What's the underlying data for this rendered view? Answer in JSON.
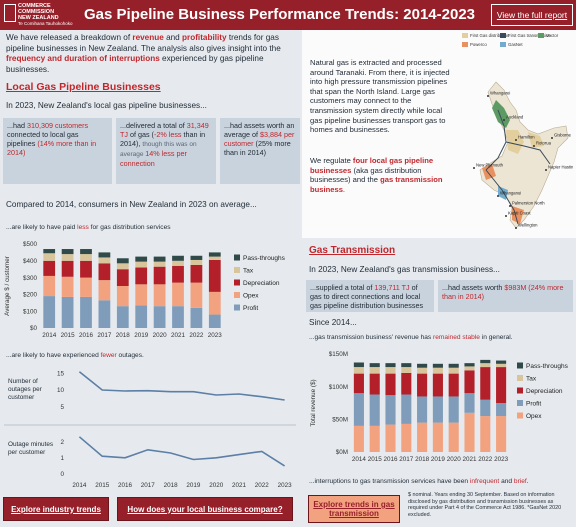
{
  "header": {
    "logo": [
      "COMMERCE",
      "COMMISSION",
      "NEW ZEALAND",
      "Te Comihana Tauhokohoko"
    ],
    "title": "Gas Pipeline Business Performance Trends: 2014-2023",
    "link": "View the full report"
  },
  "intro": [
    {
      "text": "We have released a breakdown of ",
      "style": "plain"
    },
    {
      "text": "revenue",
      "style": "bold-red"
    },
    {
      "text": " and ",
      "style": "plain"
    },
    {
      "text": "profitability",
      "style": "bold-red"
    },
    {
      "text": " trends for gas pipeline businesses in New Zealand. The analysis also gives insight into the ",
      "style": "plain"
    },
    {
      "text": "frequency and duration of interruptions",
      "style": "bold-red"
    },
    {
      "text": " experienced by gas pipeline businesses.",
      "style": "plain"
    }
  ],
  "local": {
    "heading": "Local Gas Pipeline Businesses",
    "lead": "In 2023, New Zealand's local gas pipeline businesses...",
    "boxes": [
      [
        {
          "text": "...had ",
          "style": "plain"
        },
        {
          "text": "310,309 customers",
          "style": "red"
        },
        {
          "text": " connected to local gas pipelines ",
          "style": "plain"
        },
        {
          "text": "(14% more than in 2014)",
          "style": "red"
        }
      ],
      [
        {
          "text": "...delivered a total of ",
          "style": "plain"
        },
        {
          "text": "31,349 TJ",
          "style": "red"
        },
        {
          "text": " of gas (",
          "style": "plain"
        },
        {
          "text": "-2% less",
          "style": "red"
        },
        {
          "text": " than in 2014), ",
          "style": "plain"
        },
        {
          "text": "though this was on average ",
          "style": "light"
        },
        {
          "text": "14% less per connection",
          "style": "red"
        }
      ],
      [
        {
          "text": "...had assets worth an average of ",
          "style": "plain"
        },
        {
          "text": "$3,884 per customer",
          "style": "red"
        },
        {
          "text": " (25% more than in 2014)",
          "style": "plain"
        }
      ]
    ],
    "compared": "Compared to 2014, consumers in New Zealand in 2023 on average...",
    "paid": [
      {
        "text": "...are likely to have paid ",
        "style": "plain"
      },
      {
        "text": "less",
        "style": "red"
      },
      {
        "text": " for gas distribution services",
        "style": "plain"
      }
    ],
    "outages": [
      {
        "text": "...are likely to have experienced ",
        "style": "plain"
      },
      {
        "text": "fewer",
        "style": "red"
      },
      {
        "text": " outages.",
        "style": "plain"
      }
    ]
  },
  "transmission": {
    "about": "Natural gas is extracted and processed around Taranaki. From there, it is injected into high pressure transmission pipelines that span the North Island. Large gas customers may connect to the transmission system directly while local gas pipeline businesses transport gas to homes and businesses.",
    "regulate": [
      {
        "text": "We regulate ",
        "style": "plain"
      },
      {
        "text": "four local gas pipeline businesses",
        "style": "bold-red"
      },
      {
        "text": " (aka gas distribution businesses) and the ",
        "style": "plain"
      },
      {
        "text": "gas transmission business",
        "style": "bold-red"
      },
      {
        "text": ".",
        "style": "plain"
      }
    ],
    "heading": "Gas Transmission",
    "lead": "In 2023, New Zealand's gas transmission business...",
    "boxes": [
      [
        {
          "text": "...supplied a total of ",
          "style": "plain"
        },
        {
          "text": "139,711 TJ",
          "style": "red"
        },
        {
          "text": " of gas to direct connections and local gas pipeline distribution businesses",
          "style": "plain"
        }
      ],
      [
        {
          "text": "...had assets worth ",
          "style": "plain"
        },
        {
          "text": "$983M (24% more than in 2014)",
          "style": "red"
        }
      ]
    ],
    "since": "Since 2014...",
    "revenue": [
      {
        "text": "...gas transmission business' revenue has ",
        "style": "plain"
      },
      {
        "text": "remained stable",
        "style": "red"
      },
      {
        "text": " in general.",
        "style": "plain"
      }
    ],
    "interruptions": [
      {
        "text": "...interruptions to gas transmission services have been ",
        "style": "plain"
      },
      {
        "text": "infrequent",
        "style": "red"
      },
      {
        "text": " and ",
        "style": "plain"
      },
      {
        "text": "brief",
        "style": "red"
      },
      {
        "text": ".",
        "style": "plain"
      }
    ]
  },
  "map": {
    "legend": [
      {
        "label": "First Gas distribution",
        "color": "#e3cf9e"
      },
      {
        "label": "First Gas transmission",
        "color": "#3b4a5a"
      },
      {
        "label": "Vector",
        "color": "#5e9a63"
      },
      {
        "label": "Powerco",
        "color": "#e8905f"
      },
      {
        "label": "GasNet",
        "color": "#74aacb"
      }
    ],
    "places": [
      "Whangarei",
      "Auckland",
      "Hamilton",
      "Rotorua",
      "New Plymouth",
      "Gisborne",
      "Napier Hastings",
      "Whanganui",
      "Palmerston North",
      "Kapiti Coast",
      "Wellington"
    ]
  },
  "buttons": [
    "Explore industry trends",
    "How does your local business compare?",
    "Explore trends in gas transmission"
  ],
  "footnote": "$ nominal. Years ending 30 September. Based on information disclosed by gas distribution and transmission businesses as required under Part 4 of the Commerce Act 1986. *GasNet 2020 excluded.",
  "chart_data": [
    {
      "type": "stacked-bar",
      "y_label": "Average $ / customer",
      "categories": [
        "2014",
        "2015",
        "2016",
        "2017",
        "2018",
        "2019",
        "2020",
        "2021",
        "2022",
        "2023"
      ],
      "ylim": [
        0,
        500
      ],
      "yticks": [
        {
          "value": 0,
          "label": "$0"
        },
        {
          "value": 100,
          "label": "$100"
        },
        {
          "value": 200,
          "label": "$200"
        },
        {
          "value": 300,
          "label": "$300"
        },
        {
          "value": 400,
          "label": "$400"
        },
        {
          "value": 500,
          "label": "$500"
        }
      ],
      "grid": false,
      "series": [
        {
          "name": "Profit",
          "color": "#7f9dba",
          "values": [
            190,
            185,
            185,
            165,
            130,
            135,
            130,
            130,
            120,
            80
          ]
        },
        {
          "name": "Opex",
          "color": "#f2a27f",
          "values": [
            120,
            120,
            115,
            120,
            120,
            125,
            130,
            140,
            150,
            135
          ]
        },
        {
          "name": "Depreciation",
          "color": "#b3202a",
          "values": [
            90,
            95,
            100,
            100,
            100,
            100,
            105,
            100,
            105,
            190
          ]
        },
        {
          "name": "Tax",
          "color": "#d8c59c",
          "values": [
            45,
            40,
            40,
            35,
            35,
            35,
            30,
            30,
            30,
            20
          ]
        },
        {
          "name": "Pass-throughs",
          "color": "#2f4a48",
          "values": [
            25,
            30,
            30,
            30,
            30,
            30,
            30,
            30,
            25,
            25
          ]
        }
      ]
    },
    {
      "type": "line-panels",
      "categories": [
        "2014",
        "2015",
        "2016",
        "2017",
        "2018",
        "2019",
        "2020",
        "2021",
        "2022",
        "2023"
      ],
      "series": [
        {
          "name": "Number of outages per customer",
          "color": "#5b7fa6",
          "ylim": [
            4,
            16
          ],
          "yticks": [
            5,
            10,
            15
          ],
          "values": [
            15.5,
            10,
            9.7,
            9.8,
            9.5,
            9.5,
            8.5,
            8.8,
            8,
            7
          ]
        },
        {
          "name": "Outage minutes per customer",
          "color": "#5b7fa6",
          "ylim": [
            0,
            2.6
          ],
          "yticks": [
            0,
            1,
            2
          ],
          "values": [
            2.3,
            1.1,
            1.0,
            1.5,
            1.3,
            0.9,
            1.0,
            1.2,
            1.4,
            0.5
          ]
        }
      ]
    },
    {
      "type": "stacked-bar",
      "y_label": "Total revenue ($)",
      "categories": [
        "2014",
        "2015",
        "2016",
        "2017",
        "2018",
        "2019",
        "2020",
        "2021",
        "2022",
        "2023"
      ],
      "ylim": [
        0,
        150
      ],
      "yticks": [
        {
          "value": 0,
          "label": "$0M"
        },
        {
          "value": 50,
          "label": "$50M"
        },
        {
          "value": 100,
          "label": "$100M"
        },
        {
          "value": 150,
          "label": "$150M"
        }
      ],
      "grid": false,
      "series": [
        {
          "name": "Opex",
          "color": "#f2a27f",
          "values": [
            40,
            40,
            42,
            43,
            45,
            45,
            45,
            60,
            55,
            55
          ]
        },
        {
          "name": "Profit",
          "color": "#7f9dba",
          "values": [
            50,
            48,
            45,
            45,
            40,
            40,
            40,
            30,
            25,
            20
          ]
        },
        {
          "name": "Depreciation",
          "color": "#b3202a",
          "values": [
            30,
            32,
            33,
            33,
            35,
            35,
            35,
            35,
            50,
            55
          ]
        },
        {
          "name": "Tax",
          "color": "#d8c59c",
          "values": [
            10,
            10,
            10,
            9,
            9,
            9,
            9,
            6,
            6,
            5
          ]
        },
        {
          "name": "Pass-throughs",
          "color": "#2f4a48",
          "values": [
            7,
            6,
            6,
            6,
            6,
            6,
            6,
            5,
            5,
            5
          ]
        }
      ]
    }
  ]
}
